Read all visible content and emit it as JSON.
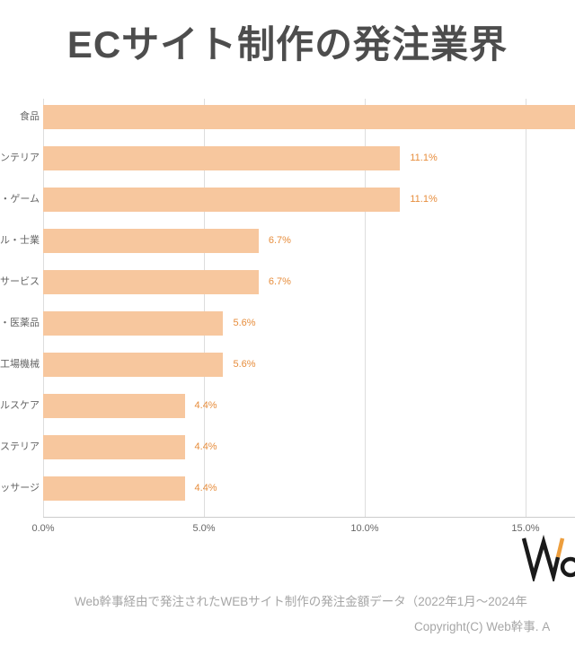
{
  "title": "ECサイト制作の発注業界",
  "chart_data": {
    "type": "bar",
    "orientation": "horizontal",
    "categories": [
      "食品",
      "ンテリア",
      "・ゲーム",
      "ル・士業",
      "サービス",
      "・医薬品",
      "工場機械",
      "ルスケア",
      "ステリア",
      "ッサージ"
    ],
    "values": [
      16.7,
      11.1,
      11.1,
      6.7,
      6.7,
      5.6,
      5.6,
      4.4,
      4.4,
      4.4
    ],
    "value_labels": [
      "",
      "11.1%",
      "11.1%",
      "6.7%",
      "6.7%",
      "5.6%",
      "5.6%",
      "4.4%",
      "4.4%",
      "4.4%"
    ],
    "x_ticks": [
      "0.0%",
      "5.0%",
      "10.0%",
      "15.0%"
    ],
    "x_tick_values": [
      0,
      5,
      10,
      15
    ],
    "xlim": [
      0,
      17.5
    ],
    "grid": true,
    "legend": "none",
    "bar_color": "#F7C79E",
    "value_color": "#E78D3C"
  },
  "footer": {
    "source_note": "Web幹事経由で発注されたWEBサイト制作の発注金額データ（2022年1月～2024年",
    "copyright": "Copyright(C) Web幹事. A",
    "logo_text": "Wo",
    "logo_accent_color": "#ED9E3D"
  }
}
